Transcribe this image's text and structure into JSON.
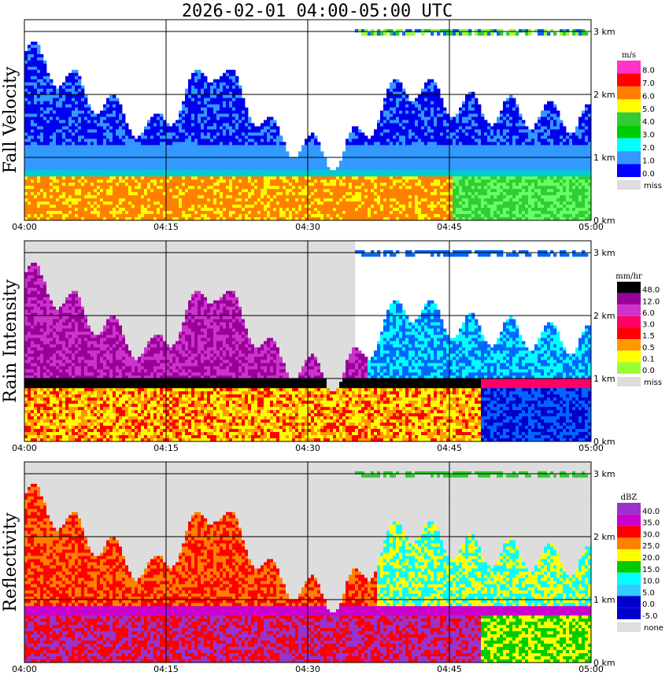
{
  "title": "2026-02-01   04:00-05:00 UTC",
  "chart_data": [
    {
      "type": "heatmap",
      "ylabel": "Fall Velocity",
      "x_ticks": [
        "04:00",
        "04:15",
        "04:30",
        "04:45",
        "05:00"
      ],
      "y_ticks": [
        "0 km",
        "1 km",
        "2 km",
        "3 km"
      ],
      "ylim_km": [
        0,
        3.2
      ],
      "colorbar": {
        "unit": "m/s",
        "levels": [
          "8.0",
          "7.0",
          "6.0",
          "5.0",
          "4.0",
          "3.0",
          "2.0",
          "1.0",
          "0.0"
        ],
        "colors": [
          "#ff33cc",
          "#ff0000",
          "#ff8000",
          "#ffff00",
          "#33cc33",
          "#00cc00",
          "#00ffff",
          "#3399ff",
          "#0000ff"
        ],
        "missing_label": "miss",
        "missing_color": "#dddddd"
      },
      "features": {
        "melting_layer_km": 0.75,
        "echo_top_km": [
          2.7,
          2.0,
          1.4,
          2.5,
          1.3,
          1.0,
          2.2,
          1.8,
          1.7,
          1.6
        ],
        "high_clutter_km": 3.0
      }
    },
    {
      "type": "heatmap",
      "ylabel": "Rain Intensity",
      "x_ticks": [
        "04:00",
        "04:15",
        "04:30",
        "04:45",
        "05:00"
      ],
      "y_ticks": [
        "0 km",
        "1 km",
        "2 km",
        "3 km"
      ],
      "ylim_km": [
        0,
        3.2
      ],
      "colorbar": {
        "unit": "mm/hr",
        "levels": [
          "48.0",
          "12.0",
          "6.0",
          "3.0",
          "1.5",
          "0.5",
          "0.1",
          "0.0"
        ],
        "colors": [
          "#000000",
          "#990099",
          "#cc33cc",
          "#ff0066",
          "#ff0000",
          "#ff9900",
          "#ffff00",
          "#99ff33",
          "#00cc00",
          "#0066ff",
          "#0000cc",
          "#00ffff",
          "#ffffff"
        ],
        "missing_label": "miss",
        "missing_color": "#dddddd"
      },
      "features": {
        "melting_layer_km": 0.95,
        "missing_region_end": "04:35"
      }
    },
    {
      "type": "heatmap",
      "ylabel": "Reflectivity",
      "x_ticks": [
        "04:00",
        "04:15",
        "04:30",
        "04:45",
        "05:00"
      ],
      "y_ticks": [
        "0 km",
        "1 km",
        "2 km",
        "3 km"
      ],
      "ylim_km": [
        0,
        3.2
      ],
      "colorbar": {
        "unit": "dBZ",
        "levels": [
          "40.0",
          "35.0",
          "30.0",
          "25.0",
          "20.0",
          "15.0",
          "10.0",
          "5.0",
          "0.0",
          "-5.0"
        ],
        "colors": [
          "#9933cc",
          "#cc00cc",
          "#ff0000",
          "#ff8000",
          "#ffff00",
          "#00cc00",
          "#00ffff",
          "#33ccff",
          "#0000cc"
        ],
        "missing_label": "none",
        "missing_color": "#dddddd"
      },
      "features": {
        "melting_layer_km": 0.85,
        "missing_region_end": "05:00"
      }
    }
  ]
}
